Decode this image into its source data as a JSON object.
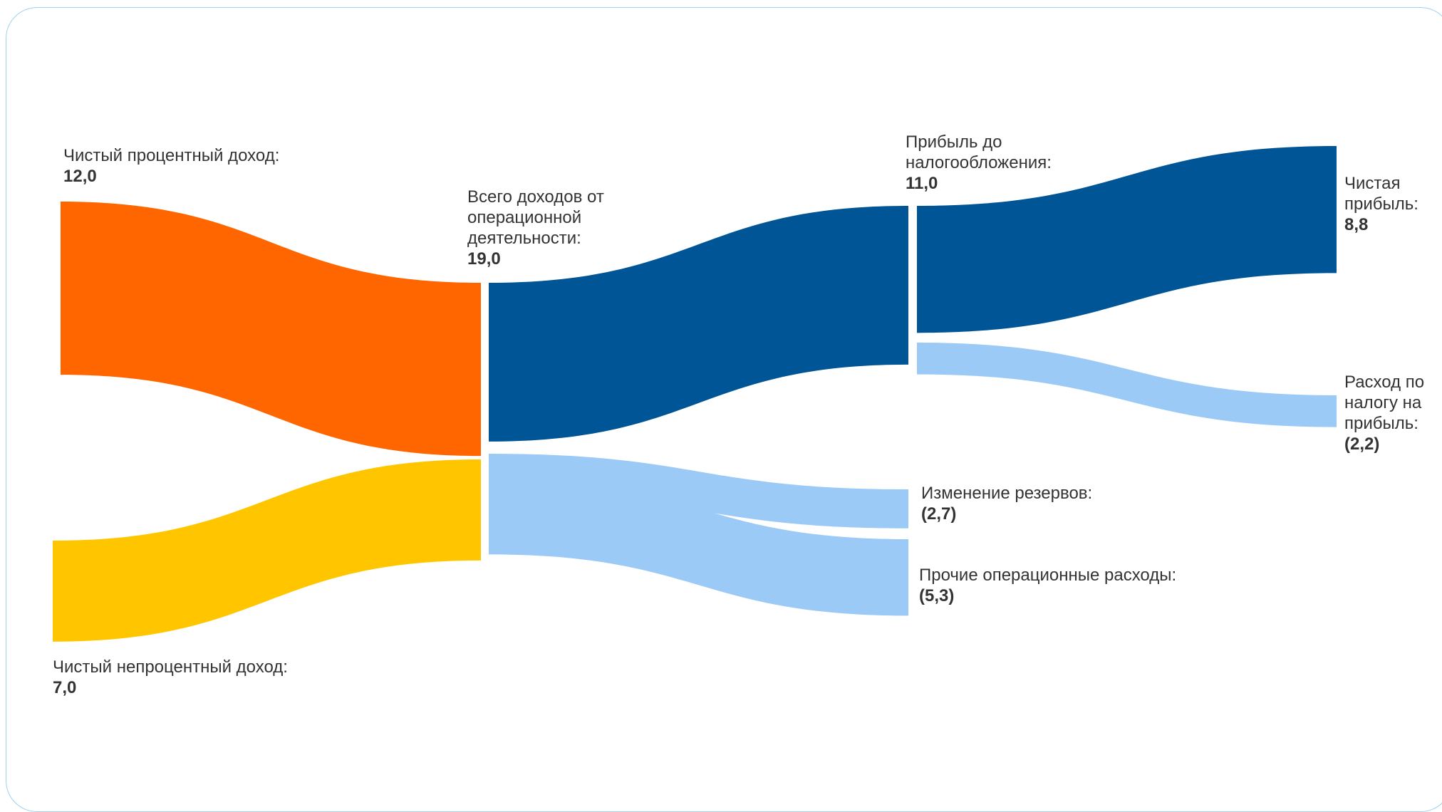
{
  "nodes": {
    "net_interest_income": {
      "name": "Чистый процентный доход:",
      "value": "12,0"
    },
    "net_non_interest_income": {
      "name": "Чистый непроцентный доход:",
      "value": "7,0"
    },
    "total_operating_income": {
      "name": "Всего доходов от операционной деятельности:",
      "value": "19,0"
    },
    "profit_before_tax": {
      "name": "Прибыль до налогообложения:",
      "value": "11,0"
    },
    "net_profit": {
      "name": "Чистая прибыль:",
      "value": "8,8"
    },
    "income_tax_expense": {
      "name": "Расход по налогу на прибыль:",
      "value": "(2,2)"
    },
    "provision_changes": {
      "name": "Изменение резервов:",
      "value": "(2,7)"
    },
    "other_operating_expenses": {
      "name": "Прочие операционные расходы:",
      "value": "(5,3)"
    }
  },
  "flows": [
    {
      "from": "net_interest_income",
      "to": "total_operating_income",
      "value": 12.0
    },
    {
      "from": "net_non_interest_income",
      "to": "total_operating_income",
      "value": 7.0
    },
    {
      "from": "total_operating_income",
      "to": "profit_before_tax",
      "value": 11.0
    },
    {
      "from": "total_operating_income",
      "to": "provision_changes",
      "value": 2.7
    },
    {
      "from": "total_operating_income",
      "to": "other_operating_expenses",
      "value": 5.3
    },
    {
      "from": "profit_before_tax",
      "to": "net_profit",
      "value": 8.8
    },
    {
      "from": "profit_before_tax",
      "to": "income_tax_expense",
      "value": 2.2
    }
  ],
  "colors": {
    "net_interest_income": "#ff6600",
    "net_non_interest_income": "#ffc600",
    "main_flow": "#005596",
    "expense_flow": "#9ccaf7",
    "frame_border": "#9fd0f0",
    "text": "#333333"
  }
}
